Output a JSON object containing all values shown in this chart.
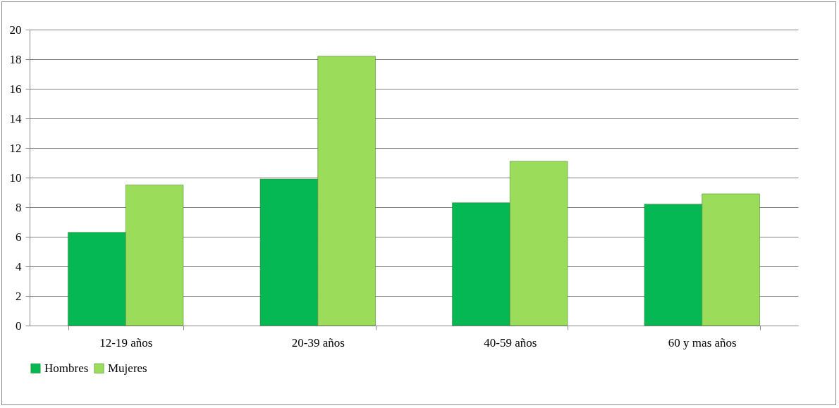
{
  "chart_data": {
    "type": "bar",
    "categories": [
      "12-19 años",
      "20-39 años",
      "40-59 años",
      "60 y mas años"
    ],
    "series": [
      {
        "name": "Hombres",
        "color": "#06b853",
        "values": [
          6.3,
          9.9,
          8.3,
          8.2
        ]
      },
      {
        "name": "Mujeres",
        "color": "#9bdc5a",
        "values": [
          9.5,
          18.2,
          11.1,
          8.9
        ]
      }
    ],
    "ylim": [
      0,
      20
    ],
    "yticks": [
      0,
      2,
      4,
      6,
      8,
      10,
      12,
      14,
      16,
      18,
      20
    ],
    "grid": "y",
    "legend": "bottom"
  }
}
